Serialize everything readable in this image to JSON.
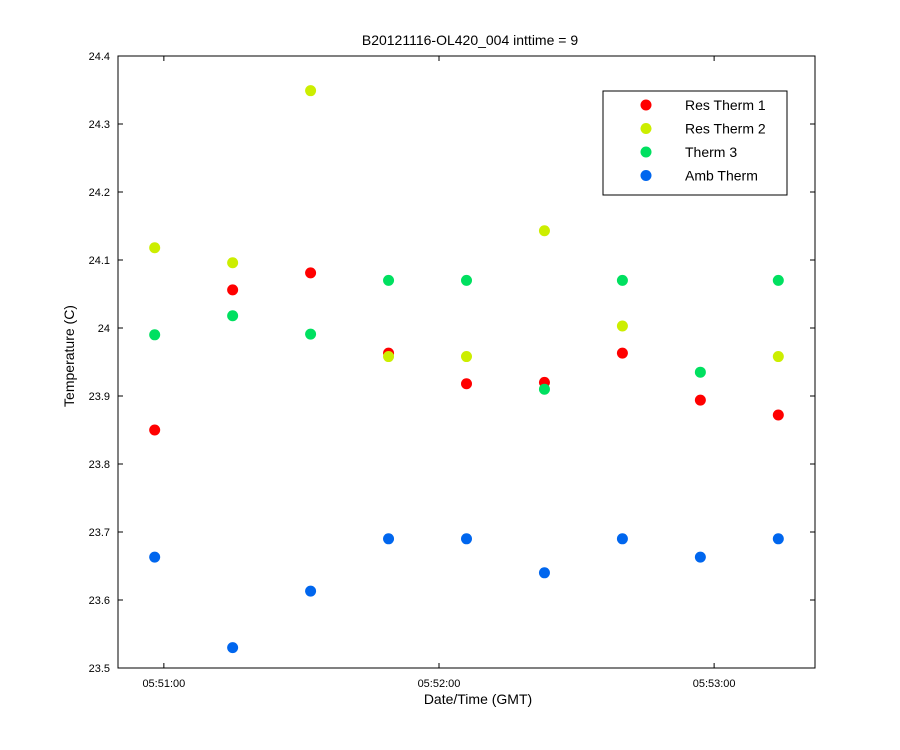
{
  "chart_data": {
    "type": "scatter",
    "title": "B20121116-OL420_004 inttime = 9",
    "xlabel": "Date/Time (GMT)",
    "ylabel": "Temperature (C)",
    "xlim": [
      "05:50:50",
      "05:53:22"
    ],
    "ylim": [
      23.5,
      24.4
    ],
    "x_ticks": [
      "05:51:00",
      "05:52:00",
      "05:53:00"
    ],
    "y_ticks": [
      "23.5",
      "23.6",
      "23.7",
      "23.8",
      "23.9",
      "24",
      "24.1",
      "24.2",
      "24.3",
      "24.4"
    ],
    "grid": false,
    "legend_position": "top-right",
    "x": [
      "05:50:58",
      "05:51:15",
      "05:51:32",
      "05:51:49",
      "05:52:06",
      "05:52:23",
      "05:52:40",
      "05:52:57",
      "05:53:14"
    ],
    "series": [
      {
        "name": "Res Therm 1",
        "color": "#ff0000",
        "values": [
          23.85,
          24.056,
          24.081,
          23.963,
          23.918,
          23.92,
          23.963,
          23.894,
          23.872
        ]
      },
      {
        "name": "Res Therm 2",
        "color": "#ccee00",
        "values": [
          24.118,
          24.096,
          24.349,
          23.958,
          23.958,
          24.143,
          24.003,
          null,
          23.958
        ]
      },
      {
        "name": "Therm 3",
        "color": "#00e060",
        "values": [
          23.99,
          24.018,
          23.991,
          24.07,
          24.07,
          23.91,
          24.07,
          23.935,
          24.07
        ]
      },
      {
        "name": "Amb Therm",
        "color": "#0066ee",
        "values": [
          23.663,
          23.53,
          23.613,
          23.69,
          23.69,
          23.64,
          23.69,
          23.663,
          23.69
        ]
      }
    ]
  }
}
